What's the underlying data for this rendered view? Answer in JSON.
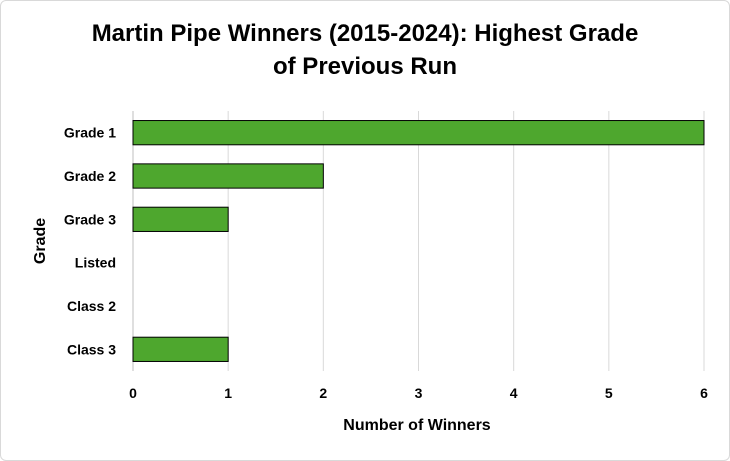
{
  "chart_data": {
    "type": "bar",
    "orientation": "horizontal",
    "title_lines": [
      "Martin Pipe Winners (2015-2024): Highest Grade",
      "of Previous Run"
    ],
    "xlabel": "Number of Winners",
    "ylabel": "Grade",
    "categories": [
      "Grade 1",
      "Grade 2",
      "Grade 3",
      "Listed",
      "Class 2",
      "Class 3"
    ],
    "values": [
      6,
      2,
      1,
      0,
      0,
      1
    ],
    "xlim": [
      0,
      6
    ],
    "xticks": [
      "0",
      "1",
      "2",
      "3",
      "4",
      "5",
      "6"
    ],
    "grid": "vertical",
    "legend": "none",
    "bar_color": "#4ea72e",
    "bar_edge_color": "#000000"
  }
}
